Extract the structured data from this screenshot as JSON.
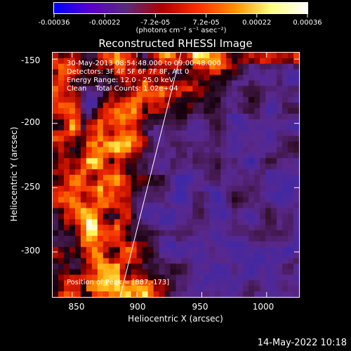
{
  "colorbar": {
    "labels": [
      "-0.00036",
      "-0.00022",
      "-7.2e-05",
      "7.2e-05",
      "0.00022",
      "0.00036"
    ],
    "unit": "(photons cm⁻² s⁻¹ asec⁻²)",
    "colors": [
      "#0000ff",
      "#5a00cc",
      "#5a2a7a",
      "#b00000",
      "#ff3000",
      "#ff9000",
      "#ffff80",
      "#ffffff"
    ]
  },
  "title": "Reconstructed RHESSI Image",
  "annotation": {
    "line1": "30-May-2013 08:54:48.000 to 09:00:48.000",
    "line2": "Detectors: 3F 4F 5F 6F 7F 8F, Att 0",
    "line3": "Energy Range: 12.0 - 25.0 keV",
    "line4": "Clean    Total Counts: 1.02e+04"
  },
  "peak_label": "Position of Peak = [887,-173]",
  "axes": {
    "x_label": "Heliocentric X (arcsec)",
    "y_label": "Heliocentric Y (arcsec)",
    "x_ticks": [
      "850",
      "900",
      "950",
      "1000"
    ],
    "y_ticks": [
      "-150",
      "-200",
      "-250",
      "-300"
    ]
  },
  "footer_date": "14-May-2022 10:18",
  "chart_data": {
    "type": "heatmap",
    "title": "Reconstructed RHESSI Image",
    "xlabel": "Heliocentric X (arcsec)",
    "ylabel": "Heliocentric Y (arcsec)",
    "xlim": [
      835,
      1025
    ],
    "ylim": [
      -335,
      -145
    ],
    "x_ticks": [
      850,
      900,
      950,
      1000
    ],
    "y_ticks": [
      -150,
      -200,
      -250,
      -300
    ],
    "colorbar_range": [
      -0.00036,
      0.00036
    ],
    "colormap": "blue-purple-red-yellow-white",
    "limb_line": [
      [
        887,
        -335
      ],
      [
        934,
        -145
      ]
    ],
    "peak": [
      887,
      -173
    ]
  }
}
